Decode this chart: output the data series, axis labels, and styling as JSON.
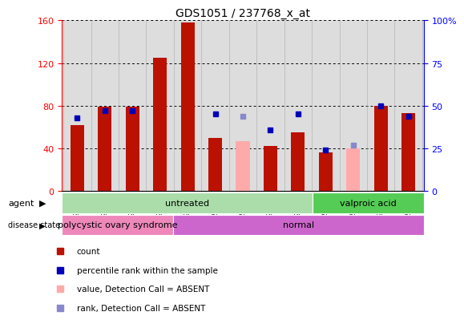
{
  "title": "GDS1051 / 237768_x_at",
  "samples": [
    "GSM29645",
    "GSM29646",
    "GSM29647",
    "GSM29648",
    "GSM29649",
    "GSM29537",
    "GSM29638",
    "GSM29643",
    "GSM29644",
    "GSM29650",
    "GSM29651",
    "GSM29652",
    "GSM29653"
  ],
  "count_present": [
    62,
    79,
    79,
    125,
    158,
    50,
    null,
    42,
    55,
    36,
    null,
    80,
    73
  ],
  "count_absent": [
    null,
    null,
    null,
    null,
    null,
    null,
    47,
    null,
    null,
    null,
    40,
    null,
    null
  ],
  "pct_present": [
    43,
    47,
    47,
    null,
    null,
    45,
    null,
    36,
    45,
    24,
    null,
    50,
    44
  ],
  "pct_absent": [
    null,
    null,
    null,
    null,
    null,
    null,
    44,
    null,
    null,
    null,
    27,
    null,
    null
  ],
  "ylim_left": [
    0,
    160
  ],
  "ylim_right": [
    0,
    100
  ],
  "yticks_left": [
    0,
    40,
    80,
    120,
    160
  ],
  "yticks_right": [
    0,
    25,
    50,
    75,
    100
  ],
  "ytick_labels_right": [
    "0",
    "25",
    "50",
    "75",
    "100%"
  ],
  "agent_groups": [
    {
      "label": "untreated",
      "start": 0,
      "end": 9,
      "color": "#aaddaa"
    },
    {
      "label": "valproic acid",
      "start": 9,
      "end": 13,
      "color": "#55cc55"
    }
  ],
  "disease_groups": [
    {
      "label": "polycystic ovary syndrome",
      "start": 0,
      "end": 4,
      "color": "#ee88bb"
    },
    {
      "label": "normal",
      "start": 4,
      "end": 13,
      "color": "#cc66cc"
    }
  ],
  "bar_color_red": "#bb1100",
  "bar_color_pink": "#ffaaaa",
  "dot_color_blue": "#0000bb",
  "dot_color_lblue": "#8888cc",
  "bar_width": 0.5,
  "plot_bg": "#dddddd",
  "legend_items": [
    {
      "color": "#bb1100",
      "label": "count"
    },
    {
      "color": "#0000bb",
      "label": "percentile rank within the sample"
    },
    {
      "color": "#ffaaaa",
      "label": "value, Detection Call = ABSENT"
    },
    {
      "color": "#8888cc",
      "label": "rank, Detection Call = ABSENT"
    }
  ]
}
